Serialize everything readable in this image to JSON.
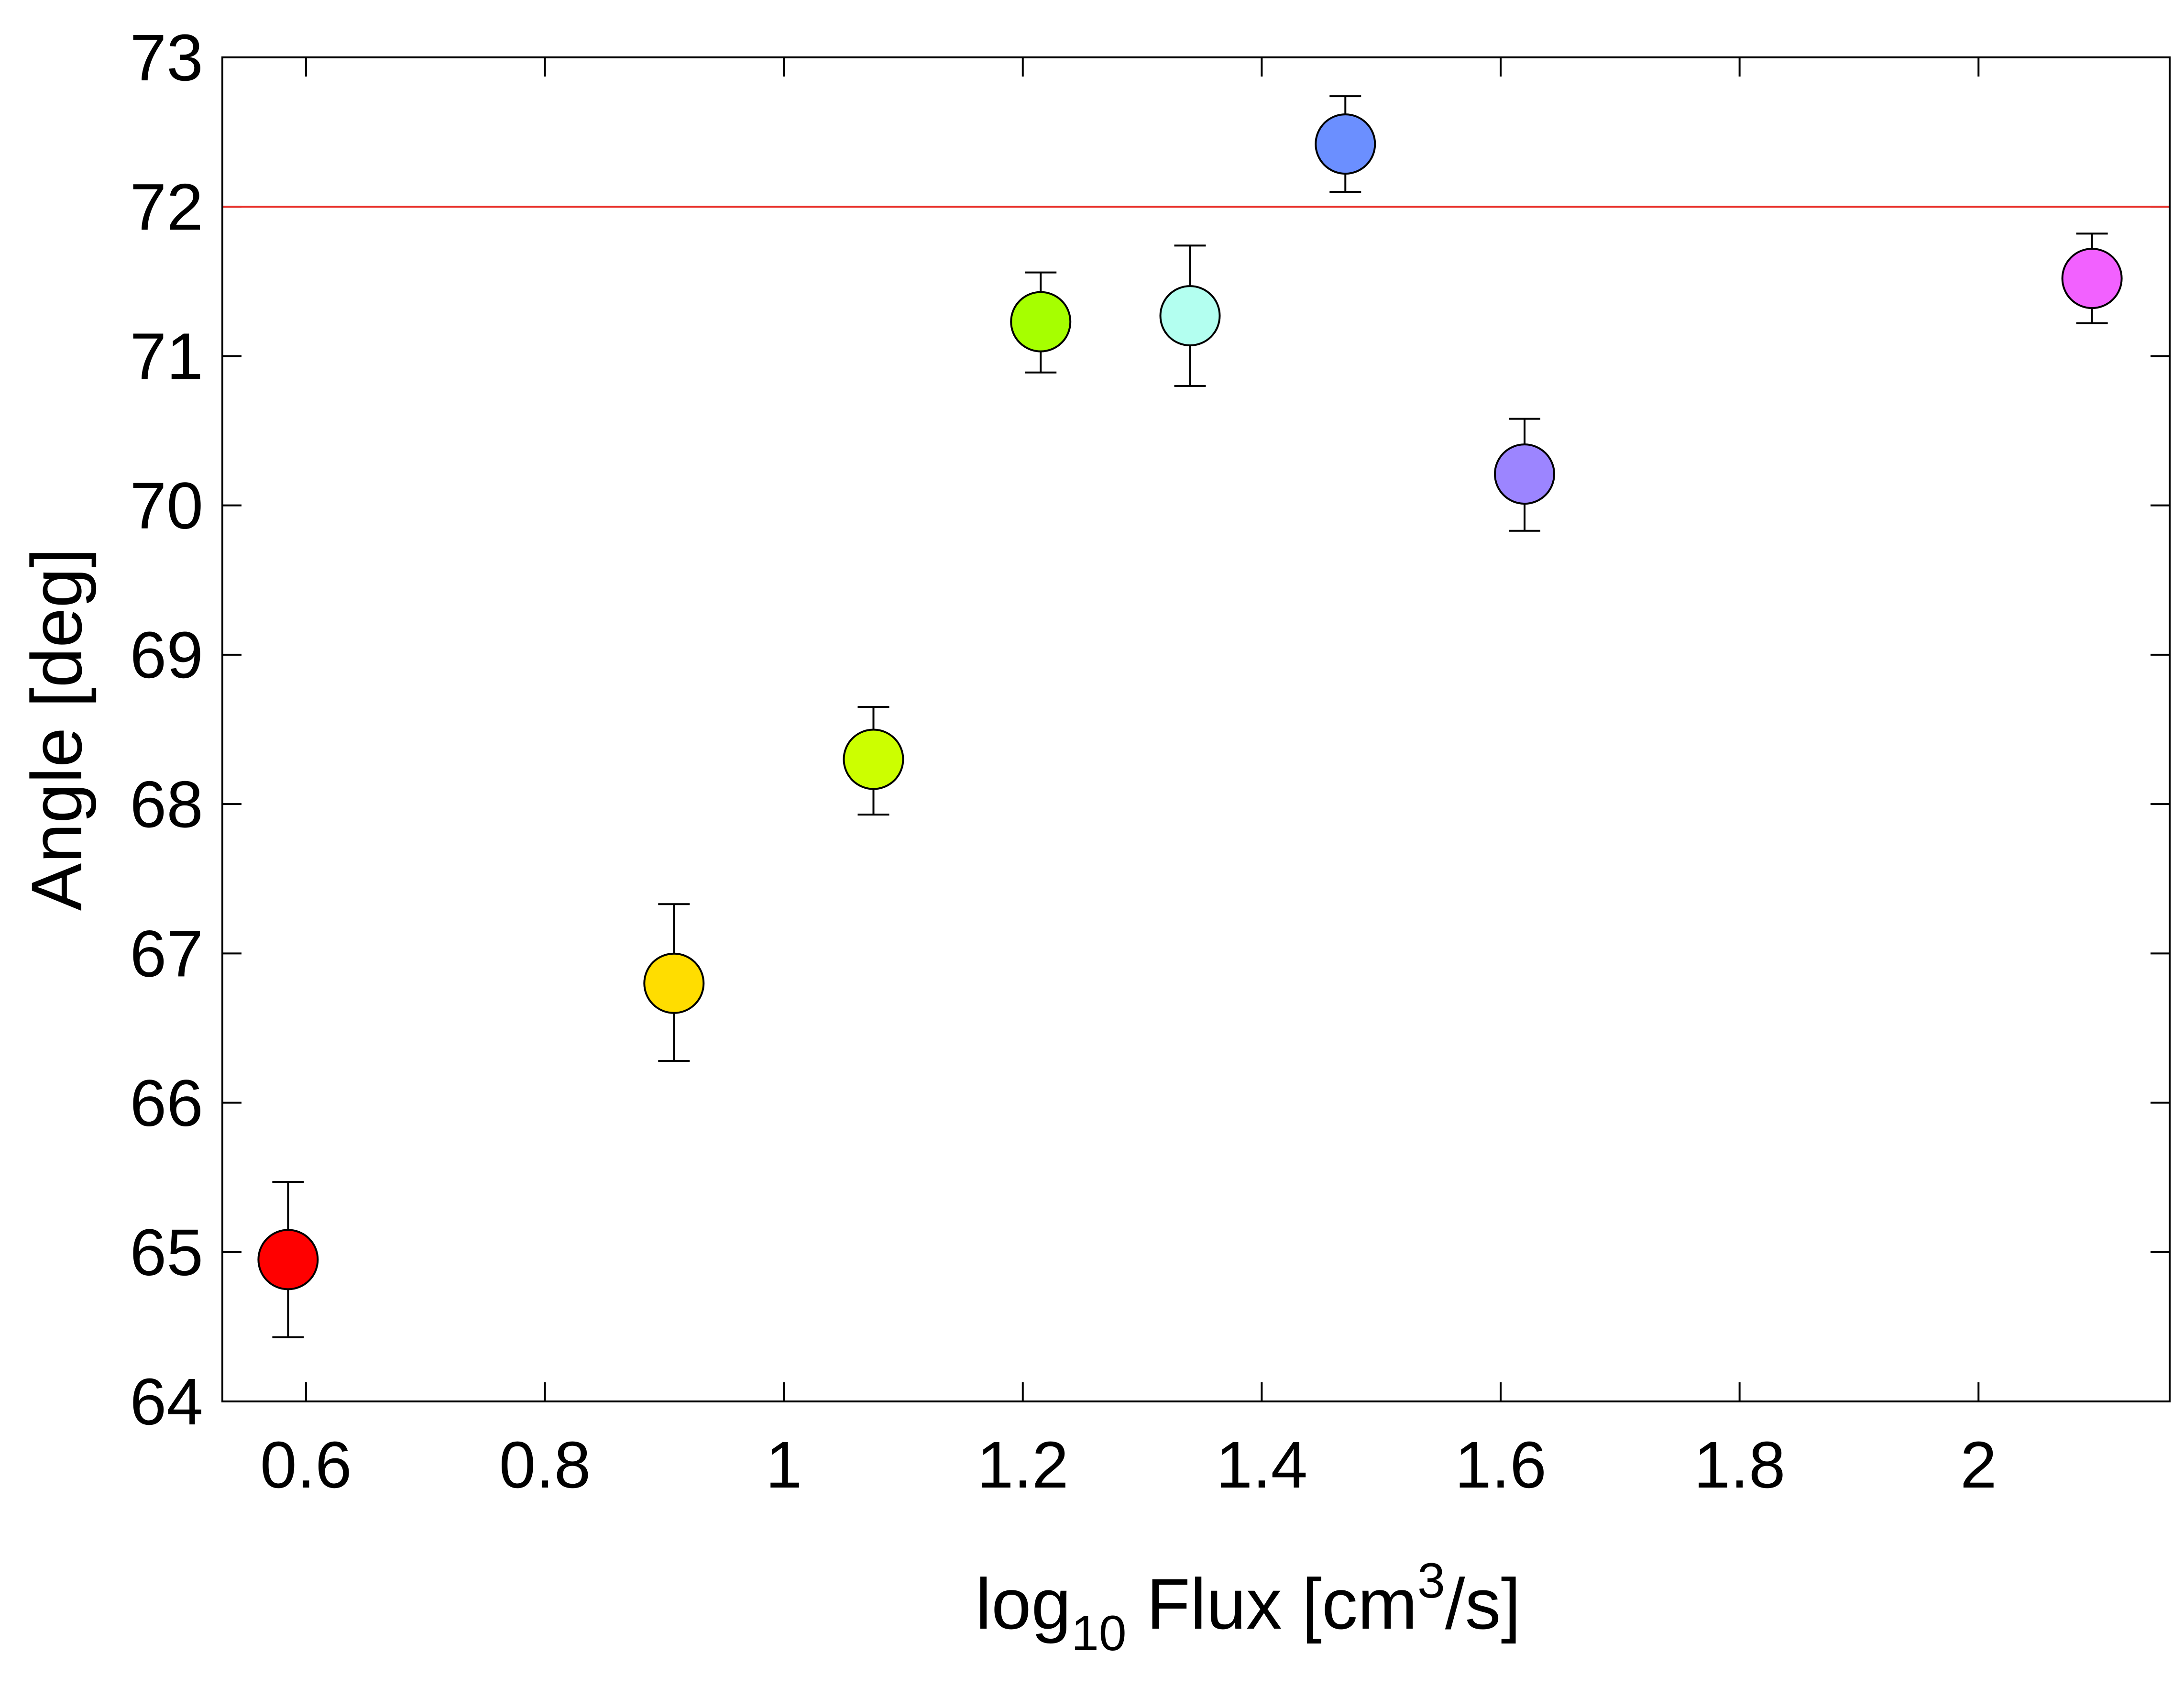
{
  "chart_data": {
    "type": "scatter",
    "xlabel": {
      "base": "log",
      "subscript": "10",
      "text_before_superscript": " Flux [cm",
      "superscript": "3",
      "text_after_superscript": "/s]"
    },
    "ylabel": "Angle [deg]",
    "xlim": [
      0.53,
      2.16
    ],
    "ylim": [
      64,
      73
    ],
    "x_ticks": [
      0.6,
      0.8,
      1,
      1.2,
      1.4,
      1.6,
      1.8,
      2
    ],
    "x_tick_labels": [
      "0.6",
      "0.8",
      "1",
      "1.2",
      "1.4",
      "1.6",
      "1.8",
      "2"
    ],
    "y_ticks": [
      64,
      65,
      66,
      67,
      68,
      69,
      70,
      71,
      72,
      73
    ],
    "y_tick_labels": [
      "64",
      "65",
      "66",
      "67",
      "68",
      "69",
      "70",
      "71",
      "72",
      "73"
    ],
    "grid": false,
    "reference_line": {
      "y": 72,
      "color": "#e8302a"
    },
    "points": [
      {
        "x": 0.585,
        "y": 64.95,
        "err_low": 64.43,
        "err_high": 65.47,
        "color": "#ff0000"
      },
      {
        "x": 0.908,
        "y": 66.8,
        "err_low": 66.28,
        "err_high": 67.33,
        "color": "#ffdd00"
      },
      {
        "x": 1.075,
        "y": 68.3,
        "err_low": 67.93,
        "err_high": 68.65,
        "color": "#ccff00"
      },
      {
        "x": 1.215,
        "y": 71.23,
        "err_low": 70.89,
        "err_high": 71.56,
        "color": "#a6ff00"
      },
      {
        "x": 1.34,
        "y": 71.27,
        "err_low": 70.8,
        "err_high": 71.74,
        "color": "#b3fff0"
      },
      {
        "x": 1.47,
        "y": 72.42,
        "err_low": 72.1,
        "err_high": 72.74,
        "color": "#6b8fff"
      },
      {
        "x": 1.62,
        "y": 70.21,
        "err_low": 69.83,
        "err_high": 70.58,
        "color": "#9c85ff"
      },
      {
        "x": 2.095,
        "y": 71.52,
        "err_low": 71.22,
        "err_high": 71.82,
        "color": "#f261ff"
      }
    ]
  }
}
